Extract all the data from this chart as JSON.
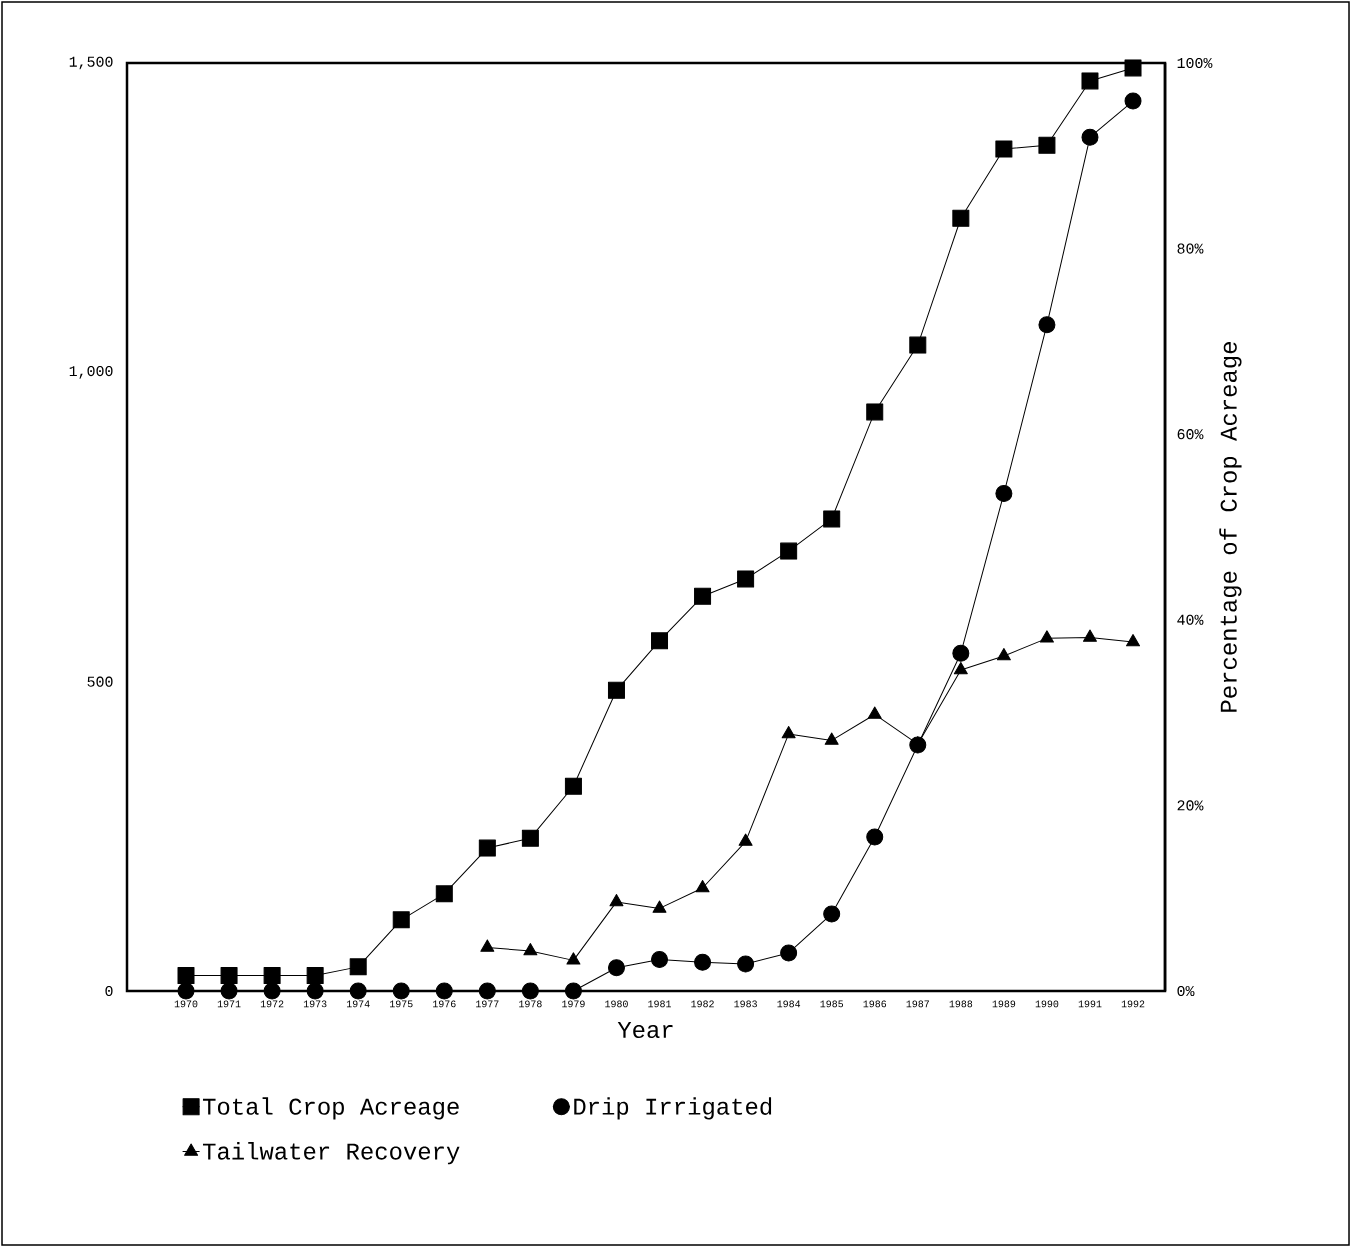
{
  "chart_data": {
    "type": "line",
    "categories": [
      "1970",
      "1971",
      "1972",
      "1973",
      "1974",
      "1975",
      "1976",
      "1977",
      "1978",
      "1979",
      "1980",
      "1981",
      "1982",
      "1983",
      "1984",
      "1985",
      "1986",
      "1987",
      "1988",
      "1989",
      "1990",
      "1991",
      "1992"
    ],
    "xlabel": "Year",
    "y2label": "Percentage of Crop Acreage",
    "ylim": [
      0,
      1500
    ],
    "yticks": [
      0,
      500,
      {
        "value": 1000,
        "label": "1,000"
      },
      {
        "value": 1500,
        "label": "1,500"
      }
    ],
    "y2lim": [
      0,
      100
    ],
    "y2ticks": [
      {
        "value": 0,
        "label": "0%"
      },
      {
        "value": 20,
        "label": "20%"
      },
      {
        "value": 40,
        "label": "40%"
      },
      {
        "value": 60,
        "label": "60%"
      },
      {
        "value": 80,
        "label": "80%"
      },
      {
        "value": 100,
        "label": "100%"
      }
    ],
    "legend": "bottom",
    "grid": false,
    "line_style": "solid",
    "series": [
      {
        "name": "Total Crop Acreage",
        "color": "#000000",
        "marker": "square",
        "values": [
          25,
          25,
          25,
          25,
          39,
          115,
          157,
          231,
          247,
          331,
          486,
          566,
          638,
          666,
          711,
          763,
          936,
          1044,
          1249,
          1361,
          1367,
          1471,
          1492
        ]
      },
      {
        "name": "Drip Irrigated",
        "color": "#000000",
        "marker": "circle",
        "axis": "y2",
        "values": [
          0,
          0,
          0,
          0,
          0,
          0,
          0,
          0,
          0,
          0,
          2.5,
          3.4,
          3.1,
          2.9,
          4.1,
          8.3,
          16.6,
          26.5,
          36.4,
          53.6,
          71.8,
          92.0,
          95.9
        ]
      },
      {
        "name": "Tailwater Recovery",
        "color": "#000000",
        "marker": "triangle",
        "axis": "y2",
        "values": [
          null,
          null,
          null,
          null,
          null,
          null,
          null,
          4.7,
          4.3,
          3.3,
          9.6,
          8.9,
          11.1,
          16.1,
          27.7,
          27.0,
          29.8,
          26.6,
          34.6,
          36.1,
          38.0,
          38.1,
          37.6
        ]
      }
    ]
  }
}
